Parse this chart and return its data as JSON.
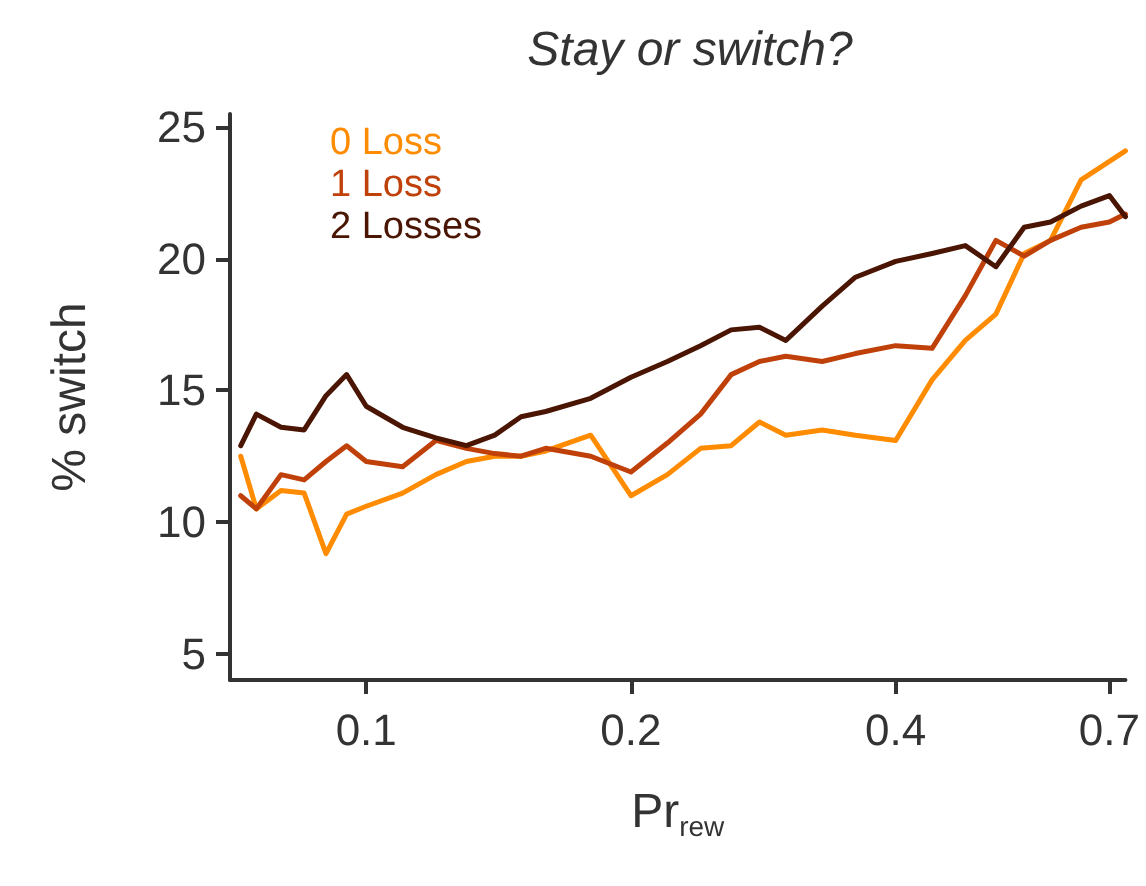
{
  "chart_data": {
    "type": "line",
    "title": "Stay or switch?",
    "xlabel": "Pr$_{rew}$",
    "ylabel": "% switch",
    "x": [
      0.072,
      0.075,
      0.08,
      0.085,
      0.09,
      0.095,
      0.1,
      0.11,
      0.12,
      0.13,
      0.14,
      0.15,
      0.16,
      0.18,
      0.2,
      0.22,
      0.24,
      0.26,
      0.28,
      0.3,
      0.33,
      0.36,
      0.4,
      0.44,
      0.48,
      0.52,
      0.56,
      0.6,
      0.65,
      0.7,
      0.73
    ],
    "series": [
      {
        "name": "0 Loss",
        "color": "#ff8c00",
        "values": [
          12.5,
          10.5,
          11.2,
          11.1,
          8.8,
          10.3,
          10.6,
          11.1,
          11.8,
          12.3,
          12.5,
          12.5,
          12.7,
          13.3,
          11,
          11.8,
          12.8,
          12.9,
          13.8,
          13.3,
          13.5,
          13.3,
          13.1,
          15.4,
          16.9,
          17.9,
          20.2,
          20.7,
          23,
          23.7,
          24.1
        ]
      },
      {
        "name": "1 Loss",
        "color": "#c0400a",
        "values": [
          11,
          10.5,
          11.8,
          11.6,
          12.3,
          12.9,
          12.3,
          12.1,
          13.1,
          12.8,
          12.6,
          12.5,
          12.8,
          12.5,
          11.9,
          13,
          14.1,
          15.6,
          16.1,
          16.3,
          16.1,
          16.4,
          16.7,
          16.6,
          18.6,
          20.7,
          20.1,
          20.7,
          21.2,
          21.4,
          21.7
        ]
      },
      {
        "name": "2 Losses",
        "color": "#4a1503",
        "values": [
          12.9,
          14.1,
          13.6,
          13.5,
          14.8,
          15.6,
          14.4,
          13.6,
          13.2,
          12.9,
          13.3,
          14,
          14.2,
          14.7,
          15.5,
          16.1,
          16.7,
          17.3,
          17.4,
          16.9,
          18.2,
          19.3,
          19.9,
          20.2,
          20.5,
          19.7,
          21.2,
          21.4,
          22,
          22.4,
          21.6
        ]
      }
    ],
    "log": "x",
    "xlim": [
      0.07,
      0.73
    ],
    "xticks": [
      0.1,
      0.2,
      0.4,
      0.7
    ],
    "ylim": [
      4,
      25.5
    ],
    "yticks": [
      5,
      10,
      15,
      20,
      25
    ],
    "grid": false,
    "legend": "top left",
    "marker": "none",
    "line_style": "solid"
  }
}
